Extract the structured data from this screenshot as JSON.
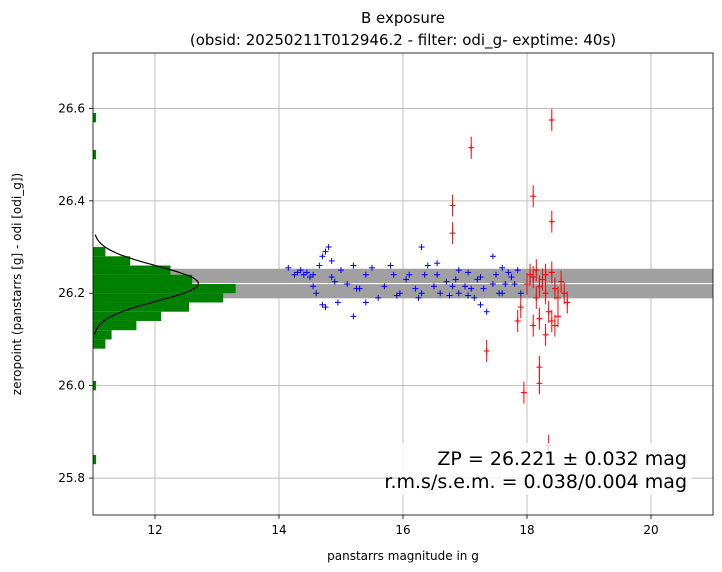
{
  "chart_data": {
    "type": "scatter",
    "title": "B exposure",
    "subtitle": "(obsid: 20250211T012946.2 - filter: odi_g- exptime: 40s)",
    "xlabel": "panstarrs magnitude in g",
    "ylabel": "zeropoint (panstarrs [g] - odi [odi_g])",
    "xlim": [
      11.0,
      21.0
    ],
    "ylim": [
      25.72,
      26.72
    ],
    "xticks": [
      "12",
      "14",
      "16",
      "18",
      "20"
    ],
    "yticks": [
      "25.8",
      "26.0",
      "26.2",
      "26.4",
      "26.6"
    ],
    "grid": true,
    "zp_band": {
      "center": 26.221,
      "half_width": 0.032
    },
    "annotations": {
      "zp": "ZP = 26.221 ± 0.032 mag",
      "rms": "r.m.s/s.e.m. = 0.038/0.004 mag"
    },
    "series": [
      {
        "color": "#0000ff",
        "marker": "plus",
        "points": [
          [
            14.15,
            26.255
          ],
          [
            14.25,
            26.24
          ],
          [
            14.3,
            26.245
          ],
          [
            14.35,
            26.25
          ],
          [
            14.4,
            26.24
          ],
          [
            14.45,
            26.245
          ],
          [
            14.5,
            26.235
          ],
          [
            14.55,
            26.215
          ],
          [
            14.6,
            26.2
          ],
          [
            14.65,
            26.26
          ],
          [
            14.7,
            26.28
          ],
          [
            14.75,
            26.29
          ],
          [
            14.8,
            26.3
          ],
          [
            14.85,
            26.27
          ],
          [
            14.9,
            26.225
          ],
          [
            14.7,
            26.175
          ],
          [
            14.75,
            26.17
          ],
          [
            14.95,
            26.18
          ],
          [
            15.0,
            26.25
          ],
          [
            15.1,
            26.22
          ],
          [
            15.2,
            26.26
          ],
          [
            15.25,
            26.21
          ],
          [
            15.3,
            26.21
          ],
          [
            15.4,
            26.24
          ],
          [
            15.5,
            26.255
          ],
          [
            15.6,
            26.19
          ],
          [
            15.7,
            26.215
          ],
          [
            15.8,
            26.26
          ],
          [
            15.9,
            26.195
          ],
          [
            15.95,
            26.2
          ],
          [
            16.05,
            26.23
          ],
          [
            16.1,
            26.24
          ],
          [
            16.2,
            26.21
          ],
          [
            16.25,
            26.19
          ],
          [
            16.3,
            26.2
          ],
          [
            16.35,
            26.24
          ],
          [
            16.4,
            26.26
          ],
          [
            16.5,
            26.215
          ],
          [
            16.55,
            26.24
          ],
          [
            16.6,
            26.2
          ],
          [
            16.7,
            26.225
          ],
          [
            16.75,
            26.195
          ],
          [
            16.8,
            26.215
          ],
          [
            16.85,
            26.23
          ],
          [
            16.9,
            26.2
          ],
          [
            17.0,
            26.215
          ],
          [
            17.05,
            26.245
          ],
          [
            17.1,
            26.21
          ],
          [
            17.15,
            26.19
          ],
          [
            17.2,
            26.23
          ],
          [
            17.25,
            26.175
          ],
          [
            17.3,
            26.21
          ],
          [
            17.35,
            26.16
          ],
          [
            17.45,
            26.22
          ],
          [
            17.5,
            26.24
          ],
          [
            17.55,
            26.2
          ],
          [
            17.6,
            26.255
          ],
          [
            17.65,
            26.22
          ],
          [
            17.7,
            26.245
          ],
          [
            17.75,
            26.235
          ],
          [
            17.8,
            26.22
          ],
          [
            17.85,
            26.25
          ],
          [
            17.9,
            26.2
          ],
          [
            17.45,
            26.28
          ],
          [
            16.55,
            26.265
          ],
          [
            15.4,
            26.18
          ],
          [
            15.2,
            26.15
          ],
          [
            14.85,
            26.235
          ],
          [
            16.3,
            26.3
          ],
          [
            17.05,
            26.195
          ],
          [
            17.25,
            26.235
          ],
          [
            17.6,
            26.2
          ],
          [
            15.85,
            26.24
          ],
          [
            14.55,
            26.24
          ],
          [
            16.9,
            26.25
          ]
        ]
      },
      {
        "color": "#ff0000",
        "marker": "plus-errorbar",
        "points": [
          [
            16.8,
            26.39
          ],
          [
            16.8,
            26.33
          ],
          [
            17.1,
            26.515
          ],
          [
            17.35,
            26.075
          ],
          [
            17.95,
            25.985
          ],
          [
            18.1,
            26.41
          ],
          [
            18.2,
            26.04
          ],
          [
            18.2,
            26.005
          ],
          [
            18.4,
            26.575
          ],
          [
            18.4,
            26.355
          ],
          [
            18.35,
            25.87
          ],
          [
            18.1,
            26.235
          ],
          [
            18.0,
            26.22
          ],
          [
            18.05,
            26.24
          ],
          [
            18.15,
            26.19
          ],
          [
            18.2,
            26.215
          ],
          [
            18.25,
            26.23
          ],
          [
            18.3,
            26.2
          ],
          [
            18.35,
            26.16
          ],
          [
            18.4,
            26.245
          ],
          [
            18.45,
            26.21
          ],
          [
            18.5,
            26.19
          ],
          [
            18.55,
            26.225
          ],
          [
            18.6,
            26.2
          ],
          [
            18.65,
            26.18
          ],
          [
            18.1,
            26.13
          ],
          [
            18.2,
            26.145
          ],
          [
            18.4,
            26.14
          ],
          [
            17.9,
            26.17
          ],
          [
            17.85,
            26.14
          ],
          [
            18.3,
            26.11
          ],
          [
            18.5,
            26.15
          ],
          [
            18.15,
            26.25
          ],
          [
            18.3,
            26.24
          ],
          [
            18.45,
            26.13
          ]
        ]
      }
    ],
    "histogram": {
      "color": "#008000",
      "bins": [
        [
          25.83,
          25.85,
          0.05
        ],
        [
          25.99,
          26.0,
          0.05
        ],
        [
          26.0,
          26.01,
          0.05
        ],
        [
          26.08,
          26.1,
          0.2
        ],
        [
          26.1,
          26.12,
          0.3
        ],
        [
          26.12,
          26.14,
          0.7
        ],
        [
          26.14,
          26.16,
          1.1
        ],
        [
          26.16,
          26.18,
          1.55
        ],
        [
          26.18,
          26.2,
          2.1
        ],
        [
          26.2,
          26.22,
          2.3
        ],
        [
          26.22,
          26.24,
          1.6
        ],
        [
          26.24,
          26.26,
          1.25
        ],
        [
          26.26,
          26.28,
          0.6
        ],
        [
          26.28,
          26.3,
          0.2
        ],
        [
          26.49,
          26.51,
          0.05
        ],
        [
          26.57,
          26.59,
          0.05
        ]
      ],
      "gauss_sigma": 0.038,
      "gauss_peak": 1.7
    }
  }
}
